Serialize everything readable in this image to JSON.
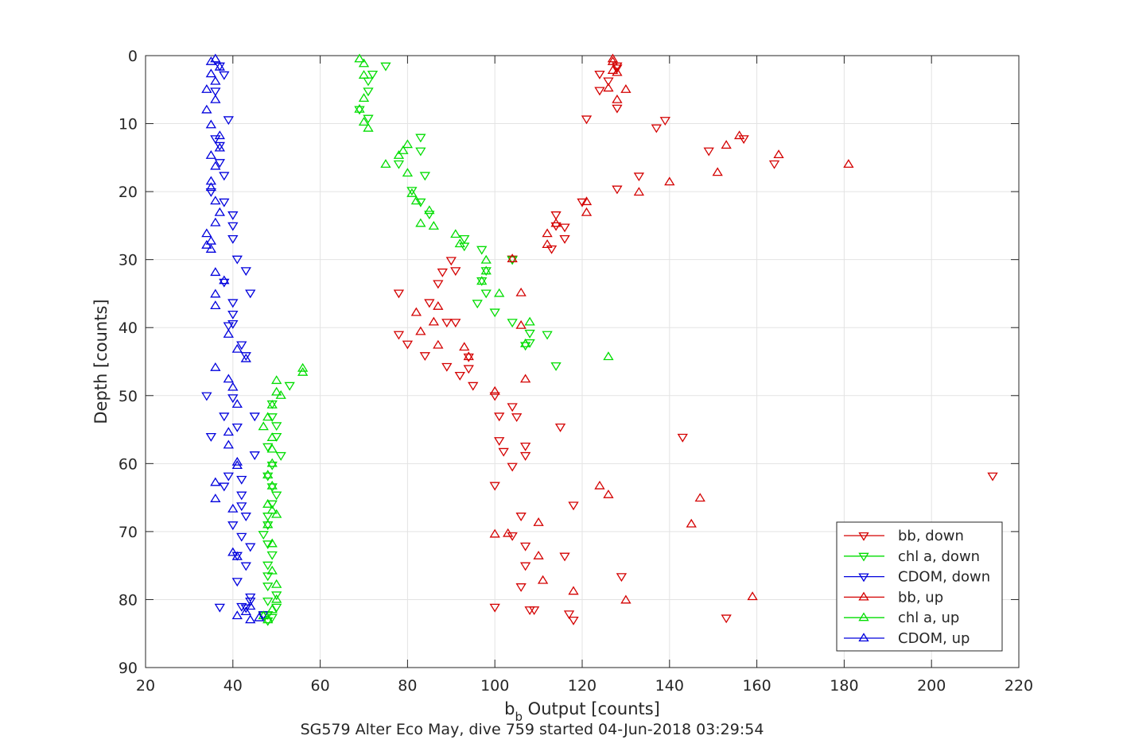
{
  "chart_data": {
    "type": "scatter",
    "title": "SG579 Alter Eco May, dive 759 started 04-Jun-2018 03:29:54",
    "xlabel_main": "b",
    "xlabel_sub": "b",
    "xlabel_rest": " Output [counts]",
    "ylabel": "Depth [counts]",
    "xlim": [
      20,
      220
    ],
    "ylim": [
      0,
      90
    ],
    "y_reversed": true,
    "grid": true,
    "legend_position": "bottom-right",
    "xticks": [
      "20",
      "40",
      "60",
      "80",
      "100",
      "120",
      "140",
      "160",
      "180",
      "200",
      "220"
    ],
    "yticks": [
      "0",
      "10",
      "20",
      "30",
      "40",
      "50",
      "60",
      "70",
      "80",
      "90"
    ],
    "series": [
      {
        "name": "bb, down",
        "color": "#d40000",
        "marker": "down",
        "points": [
          [
            128,
            1.5
          ],
          [
            124,
            2.7
          ],
          [
            128,
            1.8
          ],
          [
            126,
            3.7
          ],
          [
            124,
            5.1
          ],
          [
            128,
            7.7
          ],
          [
            121,
            9.3
          ],
          [
            139,
            9.5
          ],
          [
            137,
            10.6
          ],
          [
            157,
            12.2
          ],
          [
            149,
            14.0
          ],
          [
            164,
            15.9
          ],
          [
            133,
            17.7
          ],
          [
            128,
            19.6
          ],
          [
            120,
            21.5
          ],
          [
            114,
            23.4
          ],
          [
            114,
            25.0
          ],
          [
            116,
            25.2
          ],
          [
            116,
            26.9
          ],
          [
            113,
            28.4
          ],
          [
            104,
            29.9
          ],
          [
            90,
            30.1
          ],
          [
            91,
            31.6
          ],
          [
            88,
            31.8
          ],
          [
            87,
            33.5
          ],
          [
            78,
            34.9
          ],
          [
            85,
            36.3
          ],
          [
            89,
            39.2
          ],
          [
            91,
            39.2
          ],
          [
            78,
            41.0
          ],
          [
            80,
            42.4
          ],
          [
            84,
            44.1
          ],
          [
            94,
            44.3
          ],
          [
            89,
            45.7
          ],
          [
            94,
            46.0
          ],
          [
            92,
            47.0
          ],
          [
            95,
            48.5
          ],
          [
            100,
            50.0
          ],
          [
            104,
            51.6
          ],
          [
            101,
            53.0
          ],
          [
            105,
            53.1
          ],
          [
            115,
            54.6
          ],
          [
            143,
            56.1
          ],
          [
            101,
            56.6
          ],
          [
            107,
            57.4
          ],
          [
            102,
            58.2
          ],
          [
            107,
            58.8
          ],
          [
            104,
            60.4
          ],
          [
            214,
            61.8
          ],
          [
            100,
            63.2
          ],
          [
            118,
            66.1
          ],
          [
            106,
            67.7
          ],
          [
            104,
            70.6
          ],
          [
            107,
            72.1
          ],
          [
            116,
            73.6
          ],
          [
            107,
            75.0
          ],
          [
            129,
            76.6
          ],
          [
            106,
            78.1
          ],
          [
            153,
            82.7
          ],
          [
            118,
            83.0
          ],
          [
            117,
            82.1
          ],
          [
            108,
            81.5
          ],
          [
            109,
            81.5
          ],
          [
            100,
            81.1
          ]
        ]
      },
      {
        "name": "chl a, down",
        "color": "#00dd00",
        "marker": "down",
        "points": [
          [
            75,
            1.5
          ],
          [
            72,
            2.7
          ],
          [
            71,
            3.7
          ],
          [
            71,
            5.2
          ],
          [
            69,
            7.9
          ],
          [
            71,
            9.2
          ],
          [
            83,
            12.0
          ],
          [
            83,
            14.0
          ],
          [
            78,
            15.9
          ],
          [
            84,
            17.6
          ],
          [
            81,
            19.8
          ],
          [
            83,
            21.5
          ],
          [
            85,
            23.3
          ],
          [
            93,
            26.9
          ],
          [
            93,
            28.0
          ],
          [
            97,
            28.5
          ],
          [
            104,
            30.0
          ],
          [
            98,
            31.6
          ],
          [
            97,
            33.1
          ],
          [
            98,
            34.9
          ],
          [
            96,
            36.4
          ],
          [
            100,
            37.7
          ],
          [
            104,
            39.2
          ],
          [
            108,
            40.8
          ],
          [
            112,
            41.0
          ],
          [
            108,
            42.2
          ],
          [
            107,
            42.6
          ],
          [
            114,
            45.6
          ],
          [
            53,
            48.5
          ],
          [
            49,
            51.2
          ],
          [
            49,
            53.1
          ],
          [
            50,
            54.4
          ],
          [
            50,
            56.0
          ],
          [
            48,
            57.5
          ],
          [
            51,
            58.8
          ],
          [
            49,
            60.2
          ],
          [
            48,
            61.8
          ],
          [
            49,
            63.4
          ],
          [
            50,
            64.6
          ],
          [
            49,
            65.9
          ],
          [
            48,
            67.7
          ],
          [
            48,
            69.0
          ],
          [
            47,
            70.4
          ],
          [
            48,
            71.8
          ],
          [
            49,
            73.4
          ],
          [
            48,
            74.9
          ],
          [
            48,
            76.5
          ],
          [
            48,
            78.0
          ],
          [
            50,
            79.3
          ],
          [
            48,
            80.2
          ],
          [
            50,
            81.1
          ],
          [
            48,
            82.2
          ],
          [
            49,
            82.6
          ],
          [
            48,
            83.1
          ],
          [
            47,
            82.3
          ]
        ]
      },
      {
        "name": "CDOM, down",
        "color": "#0000dd",
        "marker": "down",
        "points": [
          [
            37,
            1.5
          ],
          [
            38,
            2.8
          ],
          [
            36,
            5.2
          ],
          [
            39,
            9.4
          ],
          [
            36,
            12.2
          ],
          [
            37,
            13.2
          ],
          [
            37,
            15.7
          ],
          [
            38,
            17.6
          ],
          [
            35,
            20.0
          ],
          [
            38,
            21.5
          ],
          [
            40,
            23.4
          ],
          [
            40,
            25.0
          ],
          [
            40,
            26.9
          ],
          [
            41,
            29.9
          ],
          [
            43,
            31.6
          ],
          [
            38,
            33.3
          ],
          [
            44,
            34.9
          ],
          [
            40,
            36.3
          ],
          [
            40,
            38.0
          ],
          [
            40,
            39.4
          ],
          [
            39,
            39.7
          ],
          [
            42,
            42.5
          ],
          [
            43,
            44.1
          ],
          [
            34,
            50.0
          ],
          [
            40,
            50.3
          ],
          [
            38,
            53.0
          ],
          [
            45,
            53.0
          ],
          [
            41,
            54.6
          ],
          [
            35,
            56.0
          ],
          [
            45,
            58.7
          ],
          [
            38,
            63.3
          ],
          [
            39,
            61.8
          ],
          [
            42,
            62.3
          ],
          [
            42,
            64.6
          ],
          [
            42,
            66.2
          ],
          [
            43,
            67.7
          ],
          [
            40,
            69.0
          ],
          [
            42,
            70.7
          ],
          [
            44,
            72.2
          ],
          [
            41,
            73.5
          ],
          [
            43,
            75.0
          ],
          [
            41,
            77.3
          ],
          [
            44,
            79.6
          ],
          [
            44,
            80.2
          ],
          [
            42,
            81.0
          ],
          [
            37,
            81.1
          ],
          [
            47,
            82.2
          ],
          [
            43,
            81.2
          ]
        ]
      },
      {
        "name": "bb, up",
        "color": "#d40000",
        "marker": "up",
        "points": [
          [
            127,
            0.5
          ],
          [
            127,
            0.9
          ],
          [
            127,
            2.2
          ],
          [
            128,
            2.5
          ],
          [
            130,
            5.0
          ],
          [
            126,
            4.8
          ],
          [
            128,
            6.5
          ],
          [
            156,
            11.8
          ],
          [
            153,
            13.2
          ],
          [
            165,
            14.6
          ],
          [
            181,
            16.0
          ],
          [
            151,
            17.2
          ],
          [
            140,
            18.6
          ],
          [
            133,
            20.1
          ],
          [
            121,
            21.5
          ],
          [
            121,
            23.1
          ],
          [
            114,
            24.7
          ],
          [
            112,
            26.2
          ],
          [
            112,
            27.8
          ],
          [
            104,
            29.9
          ],
          [
            106,
            34.9
          ],
          [
            87,
            36.9
          ],
          [
            82,
            37.8
          ],
          [
            86,
            39.2
          ],
          [
            106,
            39.7
          ],
          [
            83,
            40.6
          ],
          [
            87,
            42.6
          ],
          [
            93,
            42.9
          ],
          [
            94,
            44.3
          ],
          [
            107,
            47.6
          ],
          [
            100,
            49.4
          ],
          [
            124,
            63.3
          ],
          [
            126,
            64.6
          ],
          [
            147,
            65.1
          ],
          [
            145,
            68.9
          ],
          [
            110,
            68.7
          ],
          [
            110,
            73.6
          ],
          [
            111,
            77.2
          ],
          [
            118,
            78.8
          ],
          [
            130,
            80.1
          ],
          [
            159,
            79.6
          ],
          [
            103,
            70.3
          ],
          [
            100,
            70.4
          ]
        ]
      },
      {
        "name": "chl a, up",
        "color": "#00dd00",
        "marker": "up",
        "points": [
          [
            69,
            0.5
          ],
          [
            70,
            1.2
          ],
          [
            70,
            2.9
          ],
          [
            70,
            6.3
          ],
          [
            69,
            7.9
          ],
          [
            70,
            9.8
          ],
          [
            71,
            10.7
          ],
          [
            80,
            13.1
          ],
          [
            79,
            14.0
          ],
          [
            78,
            14.7
          ],
          [
            75,
            16.0
          ],
          [
            80,
            17.3
          ],
          [
            81,
            20.3
          ],
          [
            82,
            21.4
          ],
          [
            85,
            22.8
          ],
          [
            83,
            24.7
          ],
          [
            86,
            25.1
          ],
          [
            91,
            26.3
          ],
          [
            92,
            27.7
          ],
          [
            98,
            30.1
          ],
          [
            98,
            31.7
          ],
          [
            97,
            33.2
          ],
          [
            101,
            35.0
          ],
          [
            108,
            39.2
          ],
          [
            107,
            42.4
          ],
          [
            126,
            44.3
          ],
          [
            56,
            46.0
          ],
          [
            56,
            46.6
          ],
          [
            50,
            47.8
          ],
          [
            50,
            49.5
          ],
          [
            51,
            50.0
          ],
          [
            49,
            51.4
          ],
          [
            48,
            53.2
          ],
          [
            47,
            54.6
          ],
          [
            49,
            56.2
          ],
          [
            49,
            57.9
          ],
          [
            49,
            60.0
          ],
          [
            48,
            61.7
          ],
          [
            49,
            63.3
          ],
          [
            48,
            66.0
          ],
          [
            49,
            66.9
          ],
          [
            50,
            67.5
          ],
          [
            48,
            69.0
          ],
          [
            49,
            71.8
          ],
          [
            49,
            75.8
          ],
          [
            50,
            77.8
          ],
          [
            50,
            80.0
          ],
          [
            49,
            81.5
          ],
          [
            48,
            83.0
          ],
          [
            47,
            82.4
          ]
        ]
      },
      {
        "name": "CDOM, up",
        "color": "#0000dd",
        "marker": "up",
        "points": [
          [
            36,
            0.5
          ],
          [
            35,
            0.9
          ],
          [
            37,
            1.7
          ],
          [
            35,
            2.7
          ],
          [
            36,
            3.8
          ],
          [
            34,
            5.0
          ],
          [
            36,
            6.5
          ],
          [
            34,
            8.0
          ],
          [
            35,
            10.2
          ],
          [
            37,
            11.8
          ],
          [
            37,
            13.6
          ],
          [
            35,
            14.7
          ],
          [
            36,
            16.3
          ],
          [
            35,
            18.5
          ],
          [
            35,
            19.4
          ],
          [
            36,
            21.4
          ],
          [
            37,
            23.1
          ],
          [
            36,
            24.6
          ],
          [
            34,
            26.2
          ],
          [
            35,
            27.3
          ],
          [
            34,
            27.9
          ],
          [
            35,
            28.5
          ],
          [
            36,
            31.9
          ],
          [
            38,
            33.1
          ],
          [
            36,
            35.1
          ],
          [
            36,
            36.8
          ],
          [
            39,
            41.0
          ],
          [
            41,
            43.2
          ],
          [
            43,
            44.6
          ],
          [
            36,
            45.9
          ],
          [
            39,
            47.6
          ],
          [
            40,
            48.8
          ],
          [
            41,
            51.3
          ],
          [
            39,
            55.4
          ],
          [
            39,
            57.3
          ],
          [
            41,
            59.8
          ],
          [
            41,
            60.3
          ],
          [
            36,
            62.8
          ],
          [
            36,
            65.2
          ],
          [
            40,
            66.7
          ],
          [
            40,
            73.1
          ],
          [
            41,
            73.7
          ],
          [
            43,
            81.8
          ],
          [
            41,
            82.4
          ],
          [
            44,
            83.0
          ],
          [
            46,
            82.7
          ],
          [
            44,
            81.0
          ]
        ]
      }
    ]
  }
}
